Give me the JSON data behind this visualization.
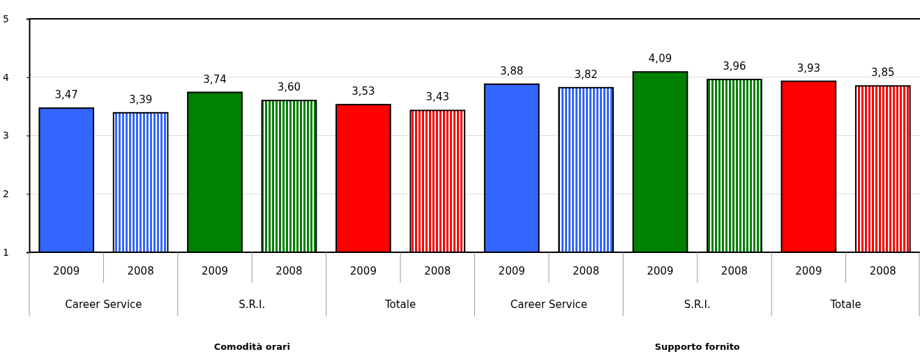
{
  "chart_data": {
    "type": "bar",
    "categories": [
      "2009",
      "2008",
      "2009",
      "2008",
      "2009",
      "2008",
      "2009",
      "2008",
      "2009",
      "2008",
      "2009",
      "2008"
    ],
    "values": [
      3.47,
      3.39,
      3.74,
      3.6,
      3.53,
      3.43,
      3.88,
      3.82,
      4.09,
      3.96,
      3.93,
      3.85
    ],
    "value_labels": [
      "3,47",
      "3,39",
      "3,74",
      "3,60",
      "3,53",
      "3,43",
      "3,88",
      "3,82",
      "4,09",
      "3,96",
      "3,93",
      "3,85"
    ],
    "colors": [
      "#3366ff",
      "#3366ff",
      "#008000",
      "#008000",
      "#ff0000",
      "#ff0000",
      "#3366ff",
      "#3366ff",
      "#008000",
      "#008000",
      "#ff0000",
      "#ff0000"
    ],
    "ylim": [
      1,
      5
    ],
    "yticks": [
      1,
      2,
      3,
      4,
      5
    ],
    "grid": "y",
    "annotations": [
      "Career Service",
      "S.R.I.",
      "Totale",
      "Career Service",
      "S.R.I.",
      "Totale",
      "Comodità orari",
      "Supporto fornito"
    ]
  }
}
